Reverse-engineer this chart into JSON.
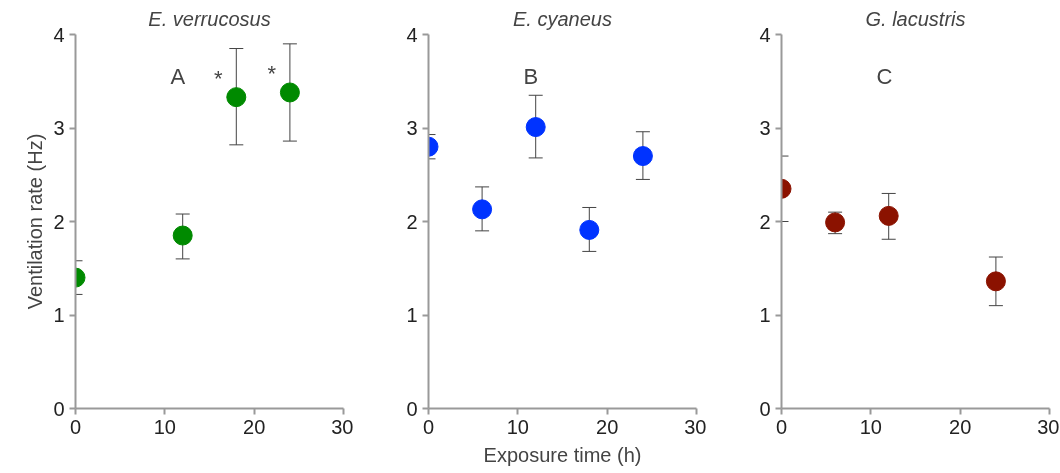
{
  "chart_data": [
    {
      "type": "scatter",
      "title": "E. verrucosus",
      "ylabel": "Ventilation rate (Hz)",
      "x": [
        0,
        12,
        18,
        24
      ],
      "series": [
        {
          "color": "#008a00",
          "values": [
            1.4,
            1.85,
            3.33,
            3.38
          ],
          "errors": [
            [
              1.22,
              1.58
            ],
            [
              1.6,
              2.08
            ],
            [
              2.82,
              3.85
            ],
            [
              2.86,
              3.9
            ]
          ]
        }
      ],
      "annotations": [
        "A",
        {
          "text": "*",
          "x": 18,
          "y": 3.33
        },
        {
          "text": "*",
          "x": 24,
          "y": 3.38
        }
      ],
      "xlim": [
        0,
        30
      ],
      "xticks": [
        0,
        10,
        20,
        30
      ],
      "ylim": [
        0,
        4
      ],
      "yticks": [
        0,
        1,
        2,
        3,
        4
      ],
      "grid": false,
      "marker": "circle"
    },
    {
      "type": "scatter",
      "title": "E. cyaneus",
      "xlabel": "Exposure time (h)",
      "x": [
        0,
        6,
        12,
        18,
        24
      ],
      "series": [
        {
          "color": "#0033ff",
          "values": [
            2.8,
            2.13,
            3.01,
            1.91,
            2.7
          ],
          "errors": [
            [
              2.67,
              2.93
            ],
            [
              1.9,
              2.37
            ],
            [
              2.68,
              3.35
            ],
            [
              1.68,
              2.15
            ],
            [
              2.45,
              2.96
            ]
          ]
        }
      ],
      "annotations": [
        "B"
      ],
      "xlim": [
        0,
        30
      ],
      "xticks": [
        0,
        10,
        20,
        30
      ],
      "ylim": [
        0,
        4
      ],
      "yticks": [
        0,
        1,
        2,
        3,
        4
      ],
      "grid": false,
      "marker": "circle"
    },
    {
      "type": "scatter",
      "title": "G. lacustris",
      "x": [
        0,
        6,
        12,
        24
      ],
      "series": [
        {
          "color": "#8b1200",
          "values": [
            2.35,
            1.99,
            2.06,
            1.36
          ],
          "errors": [
            [
              2.0,
              2.7
            ],
            [
              1.87,
              2.1
            ],
            [
              1.81,
              2.3
            ],
            [
              1.1,
              1.62
            ]
          ]
        }
      ],
      "annotations": [
        "C"
      ],
      "xlim": [
        0,
        30
      ],
      "xticks": [
        0,
        10,
        20,
        30
      ],
      "ylim": [
        0,
        4
      ],
      "yticks": [
        0,
        1,
        2,
        3,
        4
      ],
      "grid": false,
      "marker": "circle"
    }
  ]
}
